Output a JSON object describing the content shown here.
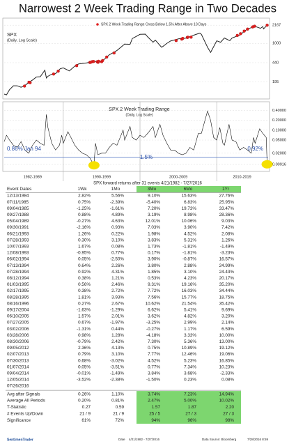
{
  "title": "Narrowest 2 Week Trading Range in Two Decades",
  "chart_data": [
    {
      "type": "line",
      "title": "SPX",
      "subtitle": "(Daily, Log Scale)",
      "log_scale": true,
      "grid": true,
      "color": "#222222",
      "xlim": [
        1982.3,
        2016.7
      ],
      "ylim": [
        100,
        2600
      ],
      "yticks": [
        195,
        440,
        1000,
        2167
      ],
      "x": [
        1982.3,
        1982.6,
        1983.0,
        1983.5,
        1984.0,
        1984.5,
        1985.0,
        1985.5,
        1986.0,
        1986.5,
        1987.0,
        1987.6,
        1987.8,
        1988.0,
        1988.5,
        1989.0,
        1989.6,
        1990.0,
        1990.8,
        1991.0,
        1991.5,
        1992.0,
        1993.0,
        1994.0,
        1995.0,
        1996.0,
        1997.0,
        1998.0,
        1998.7,
        1999.0,
        2000.0,
        2000.7,
        2001.0,
        2001.7,
        2002.0,
        2002.8,
        2003.0,
        2003.5,
        2004.0,
        2005.0,
        2006.0,
        2007.0,
        2007.8,
        2008.0,
        2008.8,
        2009.2,
        2010.0,
        2010.5,
        2011.0,
        2011.7,
        2012.0,
        2013.0,
        2014.0,
        2015.0,
        2015.7,
        2016.0,
        2016.1,
        2016.57
      ],
      "values": [
        116,
        112,
        140,
        165,
        165,
        155,
        167,
        190,
        211,
        240,
        242,
        320,
        230,
        247,
        270,
        277,
        340,
        353,
        310,
        330,
        380,
        417,
        435,
        466,
        459,
        615,
        740,
        970,
        960,
        1229,
        1469,
        1480,
        1320,
        1050,
        1148,
        850,
        880,
        1000,
        1111,
        1211,
        1248,
        1418,
        1549,
        1468,
        850,
        680,
        1115,
        1050,
        1257,
        1120,
        1257,
        1426,
        1848,
        2058,
        1900,
        2043,
        1850,
        2167
      ],
      "markers": {
        "name": "SPX 2 Week Trading Range Cross Below 1.5% After Above 10 Days",
        "color": "#e02020",
        "x": [
          1984.95,
          1985.53,
          1985.68,
          1988.74,
          1989.34,
          1991.75,
          1993.47,
          1993.57,
          1993.77,
          1993.94,
          1994.42,
          1994.53,
          1994.57,
          1994.61,
          1995.0,
          1995.13,
          1995.66,
          1996.62,
          2004.71,
          2005.44,
          2005.57,
          2006.17,
          2006.24,
          2006.66,
          2012.68,
          2013.1,
          2013.58,
          2014.02,
          2014.68,
          2014.93,
          2016.57
        ],
        "values": [
          163,
          192,
          188,
          272,
          307,
          388,
          445,
          448,
          460,
          463,
          458,
          448,
          458,
          468,
          459,
          482,
          560,
          665,
          1128,
          1200,
          1236,
          1289,
          1301,
          1303,
          1403,
          1509,
          1685,
          1837,
          2011,
          2075,
          2166
        ]
      }
    },
    {
      "type": "line",
      "title": "SPX 2 Week Trading Range",
      "subtitle": "(Daily, Log Scale)",
      "log_scale": true,
      "grid": true,
      "color": "#111111",
      "xlim": [
        1982.3,
        2016.7
      ],
      "ylim": [
        0.0075,
        0.6
      ],
      "yticks": [
        {
          "value": 0.4,
          "label": "0.40000"
        },
        {
          "value": 0.2,
          "label": "0.20000"
        },
        {
          "value": 0.1,
          "label": "0.10000"
        },
        {
          "value": 0.05,
          "label": "0.05000"
        },
        {
          "value": 0.02,
          "label": "0.02000"
        },
        {
          "value": 0.00916,
          "label": "0.00916"
        }
      ],
      "xticks": [
        {
          "value": 1986,
          "label": "1982-1989"
        },
        {
          "value": 1995,
          "label": "1990-1999"
        },
        {
          "value": 2005,
          "label": "2000-2009"
        },
        {
          "value": 2013.3,
          "label": "2010-2019"
        }
      ],
      "x_dividers": [
        1990,
        2000,
        2010
      ],
      "threshold": 0.015,
      "threshold_color": "#4a6fc0",
      "x": [
        1982.3,
        1982.6,
        1983.0,
        1983.5,
        1984.0,
        1984.5,
        1985.0,
        1985.5,
        1986.0,
        1986.5,
        1987.0,
        1987.5,
        1987.8,
        1988.0,
        1988.5,
        1989.0,
        1989.5,
        1989.8,
        1990.0,
        1990.6,
        1991.0,
        1991.5,
        1992.0,
        1992.5,
        1993.0,
        1993.5,
        1994.0,
        1994.2,
        1994.5,
        1995.0,
        1995.5,
        1996.0,
        1996.5,
        1997.0,
        1997.8,
        1998.0,
        1998.7,
        1999.0,
        1999.5,
        2000.0,
        2000.5,
        2001.0,
        2001.7,
        2002.0,
        2002.6,
        2003.0,
        2003.5,
        2004.0,
        2004.5,
        2005.0,
        2005.5,
        2006.0,
        2006.5,
        2007.0,
        2007.6,
        2008.0,
        2008.8,
        2009.2,
        2009.6,
        2010.0,
        2010.4,
        2010.8,
        2011.0,
        2011.6,
        2012.0,
        2012.5,
        2013.0,
        2013.5,
        2014.0,
        2014.5,
        2014.8,
        2015.0,
        2015.6,
        2016.0,
        2016.45,
        2016.57
      ],
      "values": [
        0.045,
        0.07,
        0.05,
        0.035,
        0.03,
        0.045,
        0.025,
        0.02,
        0.035,
        0.05,
        0.04,
        0.035,
        0.3,
        0.12,
        0.04,
        0.025,
        0.035,
        0.07,
        0.04,
        0.09,
        0.06,
        0.035,
        0.025,
        0.02,
        0.018,
        0.014,
        0.0086,
        0.04,
        0.018,
        0.02,
        0.02,
        0.03,
        0.04,
        0.035,
        0.1,
        0.05,
        0.13,
        0.06,
        0.05,
        0.07,
        0.06,
        0.08,
        0.13,
        0.06,
        0.15,
        0.07,
        0.04,
        0.025,
        0.025,
        0.02,
        0.018,
        0.02,
        0.03,
        0.025,
        0.08,
        0.08,
        0.38,
        0.2,
        0.06,
        0.05,
        0.12,
        0.04,
        0.035,
        0.15,
        0.05,
        0.045,
        0.025,
        0.03,
        0.025,
        0.02,
        0.06,
        0.04,
        0.11,
        0.08,
        0.06,
        0.0092
      ],
      "highlights": {
        "color": "#f5e000",
        "x": [
          1994.0,
          2016.57
        ],
        "values": [
          0.0086,
          0.0092
        ]
      },
      "annotations": [
        "0.86% Jan 94",
        "1.5%",
        "0.92%"
      ]
    }
  ],
  "table": {
    "title": "SPX forward returns after 31 events 4/21/1982 - 7/27/2016",
    "columns": [
      "Event Dates",
      "1Wk",
      "1Mo",
      "3Mo",
      "6Mo",
      "1Yr"
    ],
    "rows": [
      [
        "12/13/1984",
        "2.82%",
        "5.56%",
        "9.10%",
        "15.63%",
        "27.76%"
      ],
      [
        "07/11/1985",
        "0.75%",
        "-2.39%",
        "-5.40%",
        "6.83%",
        "25.95%"
      ],
      [
        "09/04/1985",
        "-1.25%",
        "-1.61%",
        "7.20%",
        "19.73%",
        "33.47%"
      ],
      [
        "09/27/1988",
        "0.88%",
        "4.89%",
        "3.19%",
        "8.98%",
        "28.36%"
      ],
      [
        "05/04/1989",
        "-0.27%",
        "4.63%",
        "12.01%",
        "10.06%",
        "9.03%"
      ],
      [
        "09/30/1991",
        "-2.16%",
        "0.93%",
        "7.03%",
        "3.90%",
        "7.42%"
      ],
      [
        "06/21/1993",
        "1.26%",
        "0.22%",
        "1.98%",
        "4.52%",
        "2.08%"
      ],
      [
        "07/28/1993",
        "0.30%",
        "3.10%",
        "3.83%",
        "5.31%",
        "1.26%"
      ],
      [
        "10/07/1993",
        "1.67%",
        "0.08%",
        "1.73%",
        "-1.81%",
        "-1.49%"
      ],
      [
        "12/08/1993",
        "-0.95%",
        "0.77%",
        "0.17%",
        "-1.81%",
        "-3.23%"
      ],
      [
        "06/02/1994",
        "0.05%",
        "-2.50%",
        "3.90%",
        "-0.87%",
        "16.57%"
      ],
      [
        "07/13/1994",
        "0.64%",
        "2.26%",
        "3.80%",
        "2.88%",
        "24.99%"
      ],
      [
        "07/28/1994",
        "0.92%",
        "4.31%",
        "1.85%",
        "3.10%",
        "24.43%"
      ],
      [
        "08/12/1994",
        "0.38%",
        "1.21%",
        "0.53%",
        "4.23%",
        "20.17%"
      ],
      [
        "01/03/1995",
        "0.56%",
        "2.46%",
        "9.31%",
        "19.16%",
        "35.20%"
      ],
      [
        "02/17/1995",
        "0.38%",
        "2.72%",
        "7.72%",
        "16.03%",
        "34.44%"
      ],
      [
        "08/28/1995",
        "1.81%",
        "3.93%",
        "7.56%",
        "15.77%",
        "18.75%"
      ],
      [
        "08/16/1996",
        "0.27%",
        "2.67%",
        "10.62%",
        "21.54%",
        "35.42%"
      ],
      [
        "09/17/2004",
        "-1.63%",
        "-1.29%",
        "6.62%",
        "5.41%",
        "9.69%"
      ],
      [
        "06/10/2005",
        "1.57%",
        "2.01%",
        "3.62%",
        "4.82%",
        "3.20%"
      ],
      [
        "07/27/2005",
        "0.67%",
        "-1.97%",
        "-3.25%",
        "2.99%",
        "2.14%"
      ],
      [
        "03/02/2006",
        "-1.31%",
        "0.44%",
        "-0.27%",
        "1.17%",
        "6.59%"
      ],
      [
        "03/28/2006",
        "0.98%",
        "1.28%",
        "-4.18%",
        "3.33%",
        "10.00%"
      ],
      [
        "08/30/2006",
        "-0.79%",
        "2.42%",
        "7.30%",
        "5.36%",
        "13.00%"
      ],
      [
        "09/05/2012",
        "2.36%",
        "4.13%",
        "0.75%",
        "10.89%",
        "19.12%"
      ],
      [
        "02/07/2013",
        "0.79%",
        "3.10%",
        "7.77%",
        "12.46%",
        "19.06%"
      ],
      [
        "07/30/2013",
        "0.68%",
        "-3.02%",
        "4.52%",
        "5.23%",
        "16.85%"
      ],
      [
        "01/07/2014",
        "0.05%",
        "-3.51%",
        "0.77%",
        "7.34%",
        "10.23%"
      ],
      [
        "09/04/2014",
        "-0.01%",
        "-1.49%",
        "3.84%",
        "3.68%",
        "-2.33%"
      ],
      [
        "12/05/2014",
        "-3.52%",
        "-2.38%",
        "-1.50%",
        "0.23%",
        "0.08%"
      ],
      [
        "07/26/2016"
      ]
    ],
    "summary": [
      [
        "Avg after Signals",
        "0.26%",
        "1.10%",
        "3.74%",
        "7.23%",
        "14.94%"
      ],
      [
        "Average All Periods",
        "0.20%",
        "0.81%",
        "2.47%",
        "5.00%",
        "10.02%"
      ],
      [
        "T-Statistic",
        "0.27",
        "0.59",
        "1.57",
        "1.87",
        "2.20"
      ],
      [
        "# Events Up/Down",
        "21 / 9",
        "21 / 9",
        "25 / 5",
        "27 / 3",
        "27 / 3"
      ],
      [
        "Significance",
        "61%",
        "72%",
        "94%",
        "96%",
        "98%"
      ]
    ]
  },
  "footer": {
    "logo": "SentimenTrader",
    "date_label": "Date",
    "date_range": "4/21/1982 - 7/27/2016",
    "source": "Data Source: Bloomberg",
    "timestamp": "7/28/2016 8:59"
  }
}
